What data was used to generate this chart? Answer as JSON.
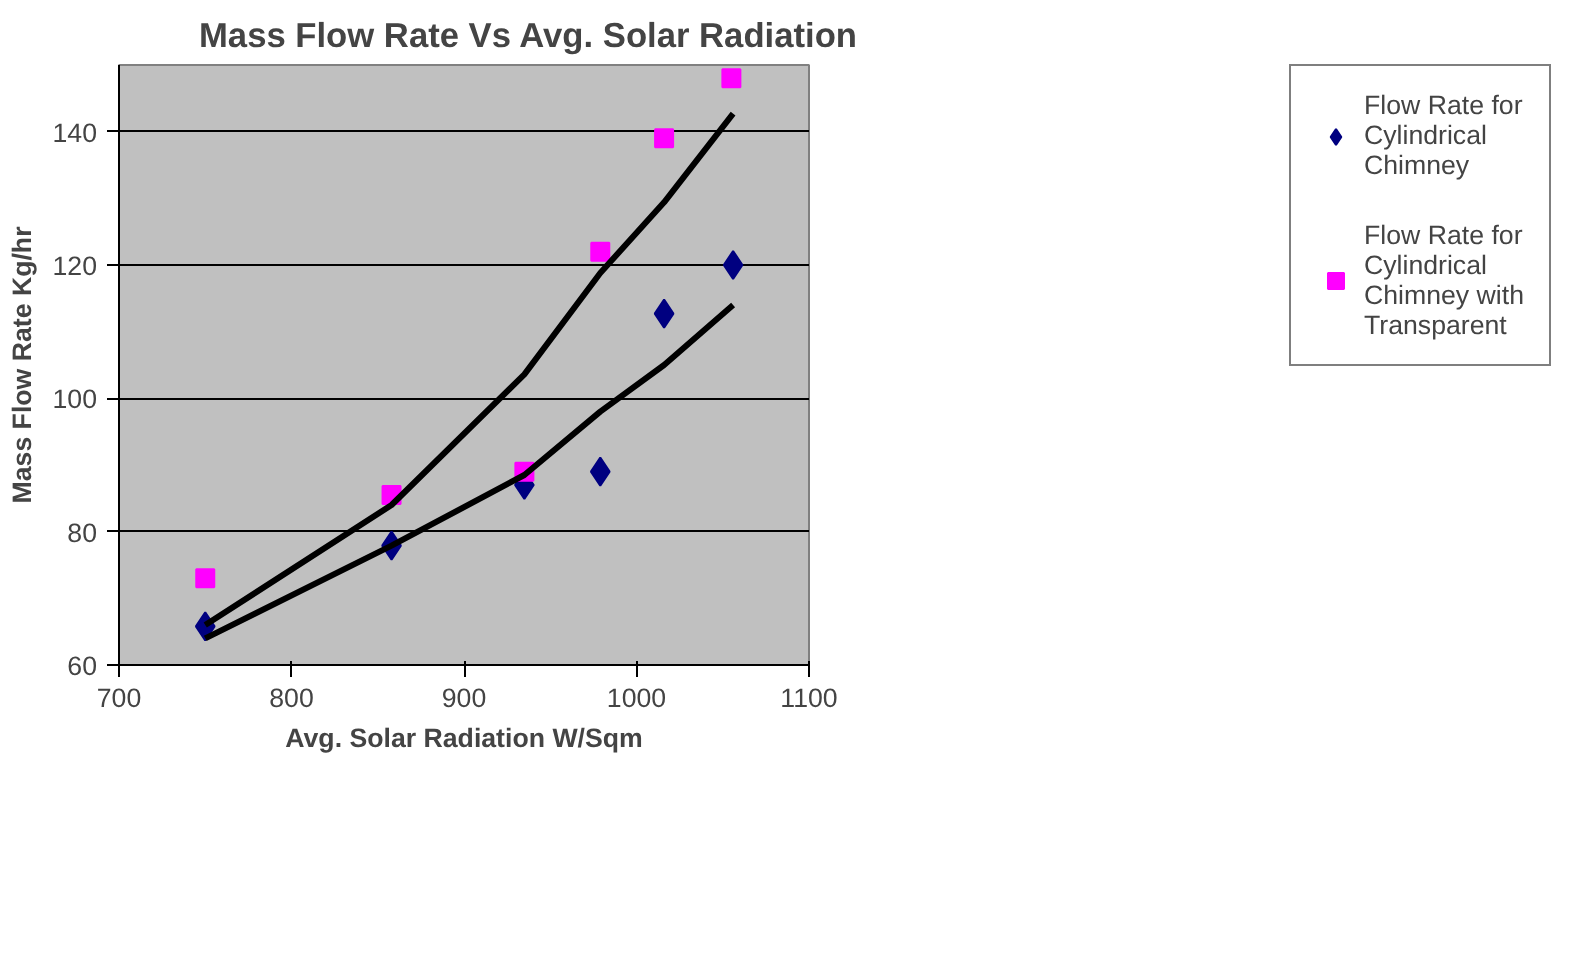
{
  "chart_data": {
    "type": "scatter",
    "title": "Mass Flow Rate Vs Avg. Solar Radiation",
    "xlabel": "Avg. Solar Radiation W/Sqm",
    "ylabel": "Mass Flow Rate Kg/hr",
    "xlim": [
      700,
      1100
    ],
    "xticks": [
      700,
      800,
      900,
      1000,
      1100
    ],
    "ylim": [
      60,
      150
    ],
    "yticks": [
      60,
      80,
      100,
      120,
      140
    ],
    "grid": "y",
    "legend": "right",
    "series": [
      {
        "name": "Flow Rate for Cylindrical Chimney",
        "color": "#000080",
        "marker": "diamond",
        "x": [
          750,
          858,
          935,
          979,
          1016,
          1056
        ],
        "values": [
          65.8,
          77.9,
          87,
          89,
          112.7,
          120
        ]
      },
      {
        "name": "Flow Rate for Cylindrical Chimney with Transparent",
        "color": "#ff00ff",
        "marker": "square",
        "x": [
          750,
          858,
          935,
          979,
          1016,
          1055
        ],
        "values": [
          73,
          85.5,
          89,
          122,
          139,
          148
        ]
      },
      {
        "type": "line",
        "color": "#000000",
        "x": [
          750,
          858,
          935,
          979,
          1016,
          1056
        ],
        "values": [
          66,
          84,
          103.6,
          118.8,
          129.4,
          142.7
        ]
      },
      {
        "type": "line",
        "color": "#000000",
        "x": [
          750,
          858,
          935,
          979,
          1016,
          1056
        ],
        "values": [
          64,
          77.9,
          88.5,
          98,
          105,
          114
        ]
      }
    ]
  }
}
